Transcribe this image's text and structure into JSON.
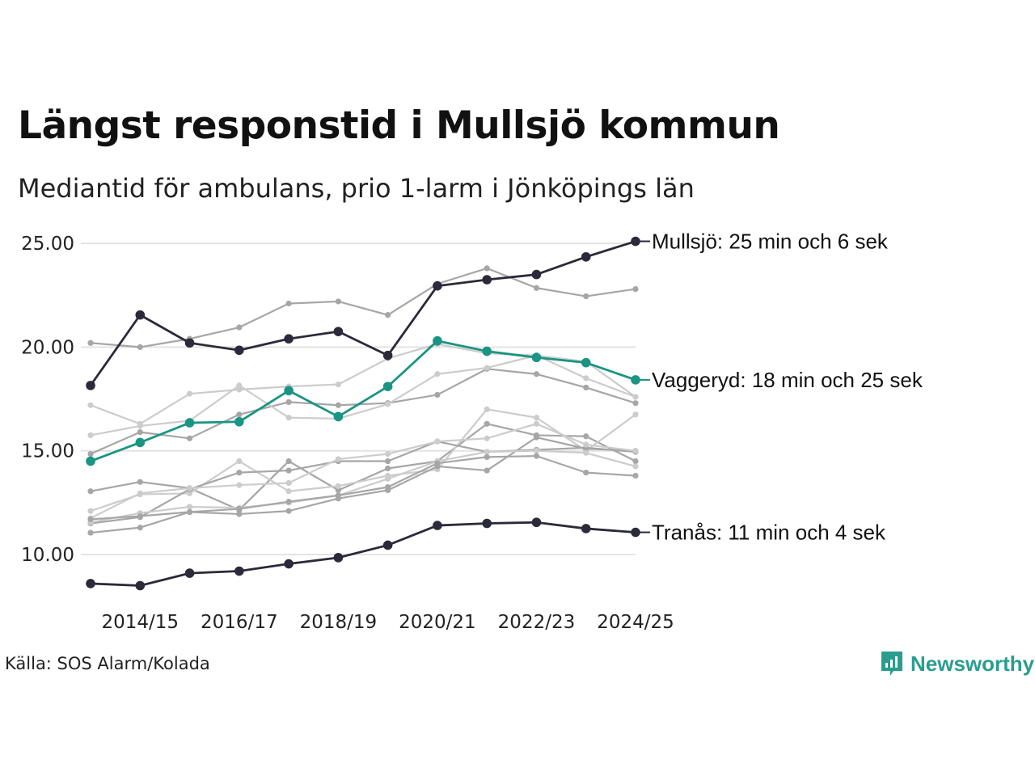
{
  "title": "Längst responstid i Mullsjö kommun",
  "subtitle": "Mediantid för ambulans, prio 1-larm i Jönköpings län",
  "source": "Källa: SOS Alarm/Kolada",
  "brand": "Newsworthy",
  "colors": {
    "dark": "#2b2a3a",
    "teal": "#1a9483",
    "gray_dark": "#a6a6a6",
    "gray_light": "#cccccc",
    "grid": "#e3e3e3",
    "brand": "#2a9d8f"
  },
  "chart_data": {
    "type": "line",
    "x": [
      "2013/14",
      "2014/15",
      "2015/16",
      "2016/17",
      "2017/18",
      "2018/19",
      "2019/20",
      "2020/21",
      "2021/22",
      "2022/23",
      "2023/24",
      "2024/25"
    ],
    "x_tick_labels": [
      "2014/15",
      "2016/17",
      "2018/19",
      "2020/21",
      "2022/23",
      "2024/25"
    ],
    "y_ticks": [
      "10.00",
      "15.00",
      "20.00",
      "25.00"
    ],
    "ylim": [
      8.0,
      25.5
    ],
    "grid": "horizontal",
    "highlighted": [
      {
        "name": "Mullsjö",
        "label": "Mullsjö: 25 min och 6 sek",
        "color": "dark",
        "values": [
          18.15,
          21.55,
          20.2,
          19.85,
          20.4,
          20.75,
          19.6,
          22.95,
          23.25,
          23.5,
          24.35,
          25.1
        ]
      },
      {
        "name": "Vaggeryd",
        "label": "Vaggeryd: 18 min och 25 sek",
        "color": "teal",
        "values": [
          14.5,
          15.4,
          16.35,
          16.4,
          17.9,
          16.65,
          18.1,
          20.3,
          19.8,
          19.5,
          19.25,
          18.42
        ]
      },
      {
        "name": "Tranås",
        "label": "Tranås: 11 min och 4 sek",
        "color": "dark",
        "values": [
          8.6,
          8.5,
          9.1,
          9.2,
          9.55,
          9.85,
          10.45,
          11.4,
          11.5,
          11.55,
          11.25,
          11.07
        ]
      }
    ],
    "background_series": [
      {
        "color": "gray_dark",
        "values": [
          20.2,
          20.0,
          20.4,
          20.95,
          22.1,
          22.2,
          21.55,
          23.05,
          23.8,
          22.85,
          22.45,
          22.8
        ]
      },
      {
        "color": "gray_light",
        "values": [
          17.2,
          16.3,
          17.75,
          17.95,
          18.1,
          18.2,
          19.45,
          20.15,
          19.7,
          19.6,
          18.5,
          17.6
        ]
      },
      {
        "color": "gray_dark",
        "values": [
          14.85,
          15.9,
          15.6,
          16.75,
          17.35,
          17.2,
          17.3,
          17.7,
          18.95,
          18.7,
          18.05,
          17.3
        ]
      },
      {
        "color": "gray_light",
        "values": [
          15.75,
          16.2,
          16.45,
          18.15,
          16.6,
          16.55,
          17.25,
          18.7,
          19.0,
          19.6,
          19.3,
          17.6
        ]
      },
      {
        "color": "gray_dark",
        "values": [
          13.05,
          13.5,
          13.2,
          12.15,
          14.5,
          13.1,
          14.15,
          14.5,
          16.3,
          15.75,
          15.7,
          14.5
        ]
      },
      {
        "color": "gray_light",
        "values": [
          12.1,
          12.9,
          12.95,
          14.5,
          13.05,
          13.3,
          13.8,
          14.1,
          17.0,
          16.6,
          15.0,
          16.75
        ]
      },
      {
        "color": "gray_dark",
        "values": [
          11.5,
          11.8,
          13.15,
          13.95,
          14.05,
          14.5,
          14.5,
          15.45,
          14.95,
          15.05,
          15.15,
          14.95
        ]
      },
      {
        "color": "gray_dark",
        "values": [
          11.05,
          11.3,
          12.05,
          11.95,
          12.1,
          12.7,
          13.1,
          14.25,
          14.05,
          15.65,
          15.1,
          15.0
        ]
      },
      {
        "color": "gray_light",
        "values": [
          11.75,
          12.95,
          13.2,
          13.35,
          13.45,
          14.6,
          14.85,
          15.45,
          15.6,
          16.3,
          15.3,
          15.0
        ]
      },
      {
        "color": "gray_light",
        "values": [
          11.55,
          12.0,
          12.3,
          12.25,
          12.5,
          12.85,
          13.65,
          14.5,
          14.95,
          15.0,
          14.9,
          14.25
        ]
      },
      {
        "color": "gray_dark",
        "values": [
          11.7,
          11.85,
          12.05,
          12.2,
          12.55,
          12.85,
          13.25,
          14.4,
          14.7,
          14.75,
          13.95,
          13.8
        ]
      }
    ]
  }
}
